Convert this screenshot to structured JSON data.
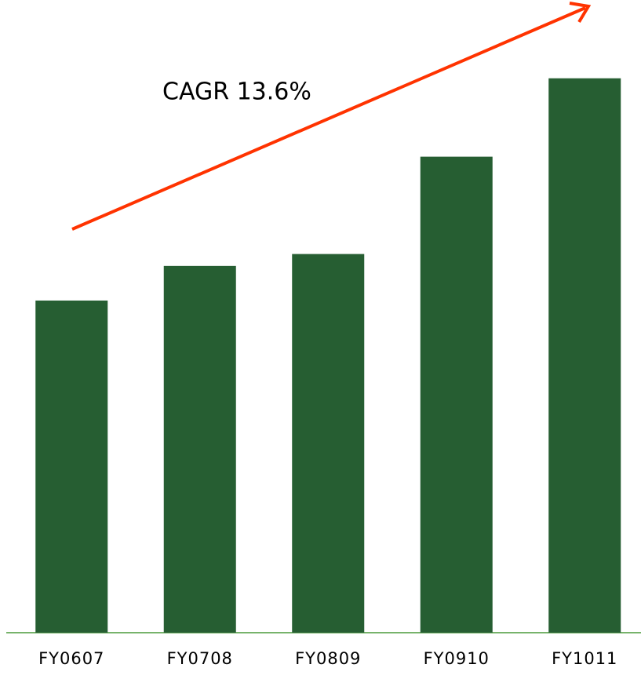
{
  "chart_data": {
    "type": "bar",
    "annotation": "CAGR 13.6%",
    "categories": [
      "FY0607",
      "FY0708",
      "FY0809",
      "FY0910",
      "FY1011"
    ],
    "values": [
      100,
      110.4,
      114,
      143.3,
      166.9
    ],
    "color": "#265e32",
    "ylim": [
      0,
      190
    ]
  }
}
